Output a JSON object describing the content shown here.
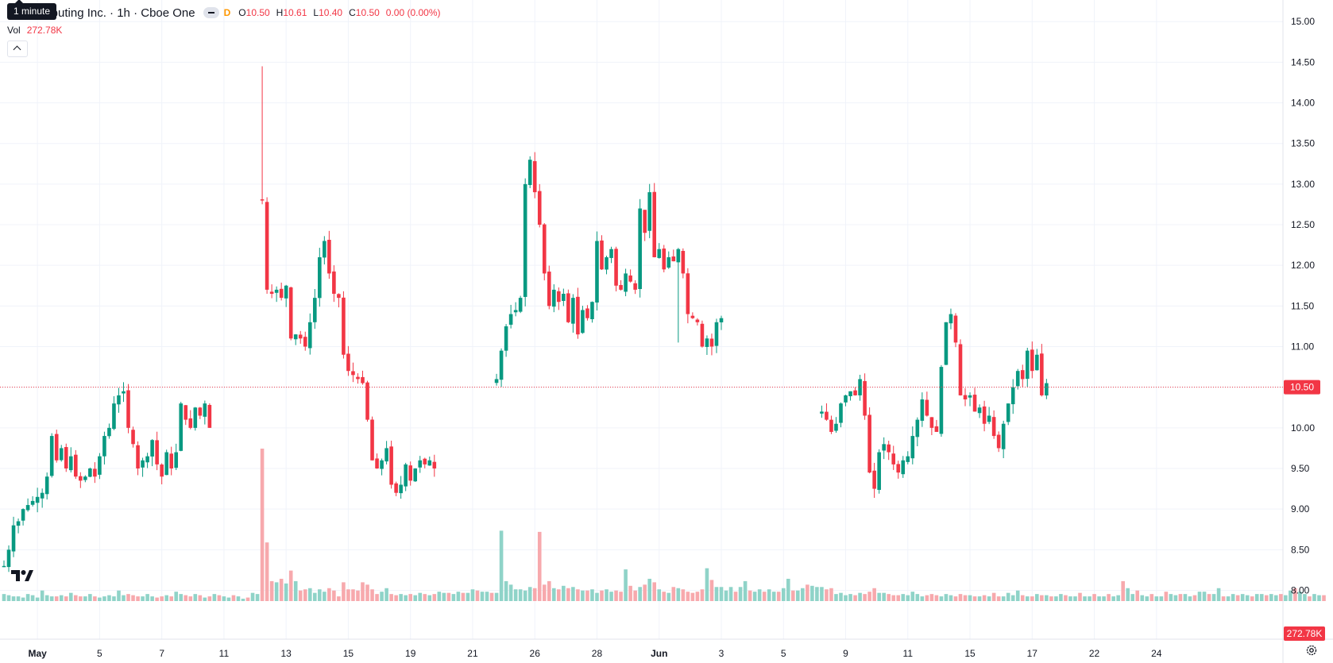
{
  "header": {
    "symbol_title": "um Computing Inc. · 1h · Cboe One",
    "delay_label": "D",
    "ohlc": {
      "o_label": "O",
      "o": "10.50",
      "h_label": "H",
      "h": "10.61",
      "l_label": "L",
      "l": "10.40",
      "c_label": "C",
      "c": "10.50",
      "change": "0.00 (0.00%)"
    }
  },
  "tooltip": "1 minute",
  "volume_legend": {
    "label": "Vol",
    "value": "272.78K"
  },
  "price_badge": "10.50",
  "volume_badge": "272.78K",
  "colors": {
    "up": "#089981",
    "down": "#f23645",
    "vol_up": "#8fd3c8",
    "vol_down": "#f7a9ad",
    "grid": "#f0f3fa",
    "axis_text": "#131722",
    "last_line": "#f23645"
  },
  "icons": {
    "logo": "tradingview-logo-icon",
    "collapse": "chevron-up-icon",
    "settings": "gear-icon"
  },
  "chart_data": {
    "type": "candlestick",
    "y_axis": {
      "side": "right",
      "ylim": [
        7.78,
        15.09
      ],
      "ticks": [
        "8.00",
        "8.50",
        "9.00",
        "9.50",
        "10.00",
        "10.50",
        "11.00",
        "11.50",
        "12.00",
        "12.50",
        "13.00",
        "13.50",
        "14.00",
        "14.50",
        "15.00"
      ]
    },
    "x_axis": {
      "labels": [
        "May",
        "5",
        "7",
        "11",
        "13",
        "15",
        "19",
        "21",
        "26",
        "28",
        "Jun",
        "3",
        "5",
        "9",
        "11",
        "15",
        "17",
        "22",
        "24"
      ]
    },
    "grid": true,
    "last_price": 10.5,
    "volume_peak_k": 1300,
    "volume_k": [
      60,
      50,
      40,
      40,
      30,
      60,
      50,
      30,
      90,
      50,
      40,
      40,
      50,
      40,
      70,
      50,
      40,
      40,
      60,
      40,
      30,
      40,
      50,
      40,
      90,
      50,
      60,
      50,
      40,
      40,
      60,
      40,
      30,
      40,
      50,
      40,
      80,
      60,
      50,
      40,
      60,
      50,
      30,
      40,
      60,
      50,
      40,
      30,
      50,
      40,
      20,
      30,
      70,
      60,
      1300,
      500,
      170,
      160,
      190,
      150,
      260,
      170,
      90,
      100,
      110,
      70,
      100,
      80,
      110,
      90,
      40,
      160,
      100,
      100,
      90,
      160,
      140,
      100,
      60,
      80,
      110,
      60,
      50,
      60,
      50,
      60,
      50,
      70,
      60,
      50,
      60,
      80,
      70,
      70,
      60,
      80,
      70,
      70,
      100,
      90,
      80,
      80,
      70,
      70,
      600,
      170,
      140,
      100,
      100,
      90,
      120,
      110,
      590,
      140,
      170,
      110,
      100,
      130,
      110,
      120,
      100,
      90,
      90,
      100,
      70,
      90,
      100,
      80,
      90,
      80,
      270,
      130,
      90,
      120,
      140,
      190,
      160,
      100,
      80,
      70,
      120,
      110,
      100,
      80,
      70,
      80,
      100,
      280,
      180,
      120,
      120,
      90,
      120,
      80,
      120,
      170,
      90,
      80,
      100,
      80,
      100,
      80,
      80,
      110,
      190,
      90,
      90,
      110,
      140,
      130,
      120,
      120,
      100,
      110,
      60,
      70,
      50,
      60,
      50,
      70,
      60,
      80,
      110,
      70,
      70,
      60,
      50,
      50,
      60,
      50,
      80,
      60,
      40,
      50,
      60,
      50,
      40,
      60,
      50,
      40,
      60,
      50,
      50,
      40,
      40,
      50,
      40,
      70,
      40,
      40,
      70,
      50,
      90,
      50,
      40,
      40,
      60,
      50,
      50,
      40,
      40,
      60,
      50,
      40,
      40,
      70,
      40,
      40,
      60,
      40,
      40,
      60,
      40,
      50,
      170,
      110,
      60,
      90,
      50,
      40,
      60,
      40,
      40,
      80,
      60,
      50,
      60,
      60,
      40,
      50,
      80,
      80,
      60,
      60,
      110,
      40,
      40,
      60,
      50,
      60,
      50,
      40,
      60,
      60,
      50,
      60,
      50,
      60,
      50,
      90,
      110,
      80,
      60,
      40,
      60,
      50,
      50
    ],
    "ohlc_segments": [
      {
        "start": 0,
        "path": [
          8.3,
          8.5,
          8.8,
          8.85,
          9.0,
          9.05,
          9.1,
          9.15,
          9.2,
          9.4,
          9.9,
          9.6,
          9.75,
          9.5,
          9.65,
          9.4,
          9.35,
          9.4,
          9.5,
          9.4,
          9.65,
          9.9,
          10.0,
          10.3,
          10.4,
          10.45,
          10.0,
          9.8,
          9.5,
          9.6,
          9.65,
          9.85,
          9.55,
          9.4,
          9.7,
          9.5,
          9.7,
          10.3,
          10.1,
          10.0,
          10.25,
          10.15,
          10.3,
          10.0
        ]
      },
      {
        "start": 54,
        "path": [
          12.8,
          11.7,
          11.65,
          11.7,
          11.6,
          11.75,
          11.1,
          11.15,
          11.1,
          11.0,
          11.3,
          11.6,
          12.1,
          12.3,
          11.9,
          11.65,
          11.6,
          10.9,
          10.7,
          10.65,
          10.6,
          10.55,
          10.1,
          9.6,
          9.5,
          9.6,
          9.75,
          9.3,
          9.2,
          9.3,
          9.55,
          9.35,
          9.5,
          9.6,
          9.55,
          9.6,
          9.5
        ]
      },
      {
        "start": 103,
        "path": [
          10.6,
          10.95,
          11.25,
          11.4,
          11.45,
          11.6,
          13.0,
          13.3,
          12.9,
          12.5,
          11.9,
          11.5,
          11.7,
          11.55,
          11.65,
          11.3,
          11.6,
          11.15,
          11.45,
          11.35,
          11.55,
          12.3,
          11.95,
          12.1,
          12.2,
          11.75,
          11.7,
          11.9,
          11.8,
          11.7,
          12.7,
          12.4,
          12.9,
          12.1,
          12.2,
          11.95,
          12.1,
          12.05,
          12.2,
          11.9,
          11.4,
          11.35,
          11.3,
          11.0,
          11.1,
          11.0,
          11.3,
          11.35
        ]
      },
      {
        "start": 171,
        "path": [
          10.2,
          10.1,
          9.95,
          10.05,
          10.3,
          10.4,
          10.45,
          10.4,
          10.6,
          10.15,
          9.45,
          9.25,
          9.7,
          9.8,
          9.7,
          9.55,
          9.45,
          9.6,
          9.65,
          9.9,
          10.1,
          10.35,
          10.15,
          10.0,
          9.95,
          10.75,
          11.3,
          11.4,
          11.05,
          10.4,
          10.35,
          10.4,
          10.2,
          10.25,
          10.05,
          10.15,
          9.9,
          9.75,
          10.05,
          10.3,
          10.5,
          10.7,
          10.6,
          10.95,
          10.7,
          10.9,
          10.4,
          10.55
        ]
      }
    ]
  }
}
